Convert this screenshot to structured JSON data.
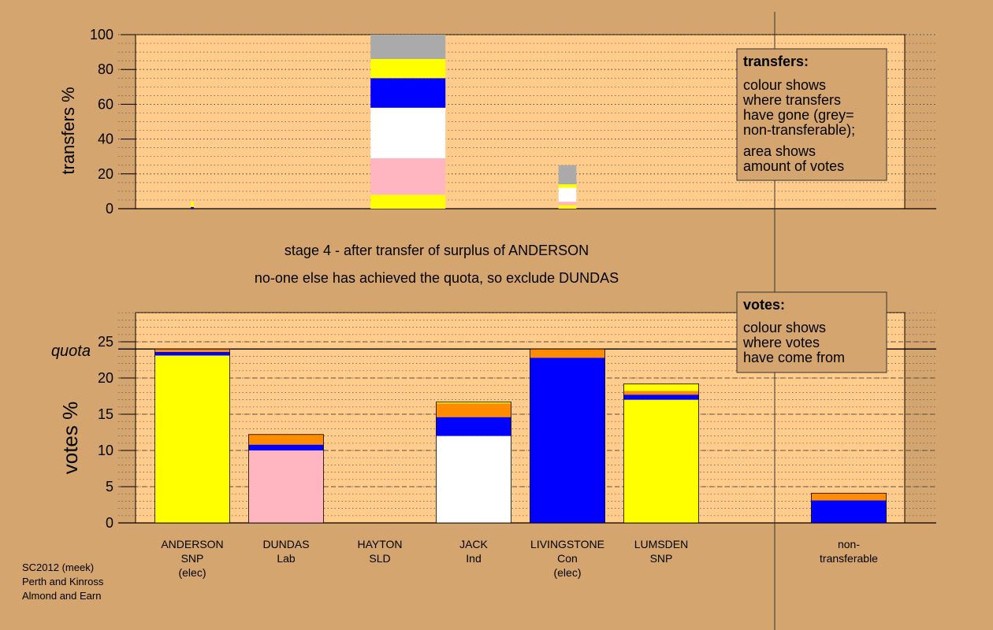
{
  "colors": {
    "background": "#d4a56f",
    "plot_background": "#ffcc8c",
    "SNP": "#ffff00",
    "Con": "#0000ff",
    "Lab": "#ffb6c1",
    "Ind": "#ffffff",
    "orange": "#ff8c00",
    "nontransferable": "#aaaaaa"
  },
  "stage_title_1": "stage 4 - after transfer of surplus of ANDERSON",
  "stage_title_2": "no-one else has achieved the quota, so exclude DUNDAS",
  "transfers_legend": {
    "title": "transfers:",
    "lines": [
      "colour shows",
      "where transfers",
      "have gone (grey=",
      "non-transferable);",
      "area shows",
      "amount of votes"
    ]
  },
  "votes_legend": {
    "title": "votes:",
    "lines": [
      "colour shows",
      "where votes",
      "have come from"
    ]
  },
  "footer": [
    "SC2012 (meek)",
    "Perth and Kinross",
    "Almond and Earn"
  ],
  "candidates": [
    {
      "lines": [
        "ANDERSON",
        "SNP",
        "(elec)"
      ]
    },
    {
      "lines": [
        "DUNDAS",
        "Lab"
      ]
    },
    {
      "lines": [
        "HAYTON",
        "SLD"
      ]
    },
    {
      "lines": [
        "JACK",
        "Ind"
      ]
    },
    {
      "lines": [
        "LIVINGSTONE",
        "Con",
        "(elec)"
      ]
    },
    {
      "lines": [
        "LUMSDEN",
        "SNP"
      ]
    },
    {
      "lines": [
        "non-",
        "transferable"
      ]
    }
  ],
  "chart_data": [
    {
      "type": "bar",
      "stacked": true,
      "ylabel": "transfers %",
      "ylim": [
        0,
        100
      ],
      "yticks": [
        0,
        20,
        40,
        60,
        80,
        100
      ],
      "grid": "dotted",
      "bars": [
        {
          "candidate": "ANDERSON",
          "slot": 0,
          "width_fraction": 0.04,
          "segments": [
            {
              "from": 0,
              "to": 1,
              "color": "#0000ff"
            },
            {
              "from": 1,
              "to": 4,
              "color": "#ffff00"
            }
          ]
        },
        {
          "candidate": "DUNDAS",
          "slot": 2.3,
          "width_fraction": 1.0,
          "segments": [
            {
              "from": 0,
              "to": 8,
              "color": "#ffff00"
            },
            {
              "from": 8,
              "to": 29,
              "color": "#ffb6c1"
            },
            {
              "from": 29,
              "to": 58,
              "color": "#ffffff"
            },
            {
              "from": 58,
              "to": 75,
              "color": "#0000ff"
            },
            {
              "from": 75,
              "to": 86,
              "color": "#ffff00"
            },
            {
              "from": 86,
              "to": 100,
              "color": "#aaaaaa"
            }
          ]
        },
        {
          "candidate": "LIVINGSTONE",
          "slot": 4,
          "width_fraction": 0.24,
          "segments": [
            {
              "from": 0,
              "to": 2,
              "color": "#ffff00"
            },
            {
              "from": 2,
              "to": 4,
              "color": "#ffb6c1"
            },
            {
              "from": 4,
              "to": 12,
              "color": "#ffffff"
            },
            {
              "from": 12,
              "to": 14,
              "color": "#ffff00"
            },
            {
              "from": 14,
              "to": 25,
              "color": "#aaaaaa"
            }
          ]
        }
      ]
    },
    {
      "type": "bar",
      "stacked": true,
      "ylabel": "votes %",
      "ylim": [
        0,
        29
      ],
      "yticks": [
        0,
        5,
        10,
        15,
        20,
        25
      ],
      "quota": 24,
      "quota_label": "quota",
      "grid": "dashed",
      "categories": [
        "ANDERSON",
        "DUNDAS",
        "HAYTON",
        "JACK",
        "LIVINGSTONE",
        "LUMSDEN",
        "non-transferable"
      ],
      "bars": [
        {
          "candidate": "ANDERSON",
          "slot": 0,
          "segments": [
            {
              "from": 0,
              "to": 23.1,
              "color": "#ffff00"
            },
            {
              "from": 23.1,
              "to": 23.6,
              "color": "#0000ff"
            },
            {
              "from": 23.6,
              "to": 24.0,
              "color": "#ff8c00"
            }
          ]
        },
        {
          "candidate": "DUNDAS",
          "slot": 1,
          "segments": [
            {
              "from": 0,
              "to": 10.0,
              "color": "#ffb6c1"
            },
            {
              "from": 10.0,
              "to": 10.8,
              "color": "#0000ff"
            },
            {
              "from": 10.8,
              "to": 12.2,
              "color": "#ff8c00"
            }
          ]
        },
        {
          "candidate": "JACK",
          "slot": 3,
          "segments": [
            {
              "from": 0,
              "to": 12.0,
              "color": "#ffffff"
            },
            {
              "from": 12.0,
              "to": 14.6,
              "color": "#0000ff"
            },
            {
              "from": 14.6,
              "to": 16.5,
              "color": "#ff8c00"
            },
            {
              "from": 16.5,
              "to": 16.7,
              "color": "#ffff00"
            }
          ]
        },
        {
          "candidate": "LIVINGSTONE",
          "slot": 4,
          "segments": [
            {
              "from": 0,
              "to": 22.8,
              "color": "#0000ff"
            },
            {
              "from": 22.8,
              "to": 24.0,
              "color": "#ff8c00"
            }
          ]
        },
        {
          "candidate": "LUMSDEN",
          "slot": 5,
          "segments": [
            {
              "from": 0,
              "to": 17.0,
              "color": "#ffff00"
            },
            {
              "from": 17.0,
              "to": 17.7,
              "color": "#0000ff"
            },
            {
              "from": 17.7,
              "to": 18.2,
              "color": "#ff8c00"
            },
            {
              "from": 18.2,
              "to": 18.6,
              "color": "#ffff00"
            },
            {
              "from": 18.6,
              "to": 19.2,
              "color": "#ffff00"
            }
          ]
        },
        {
          "candidate": "non-transferable",
          "slot": 7,
          "segments": [
            {
              "from": 0,
              "to": 3.1,
              "color": "#0000ff"
            },
            {
              "from": 3.1,
              "to": 4.1,
              "color": "#ff8c00"
            }
          ]
        }
      ]
    }
  ]
}
